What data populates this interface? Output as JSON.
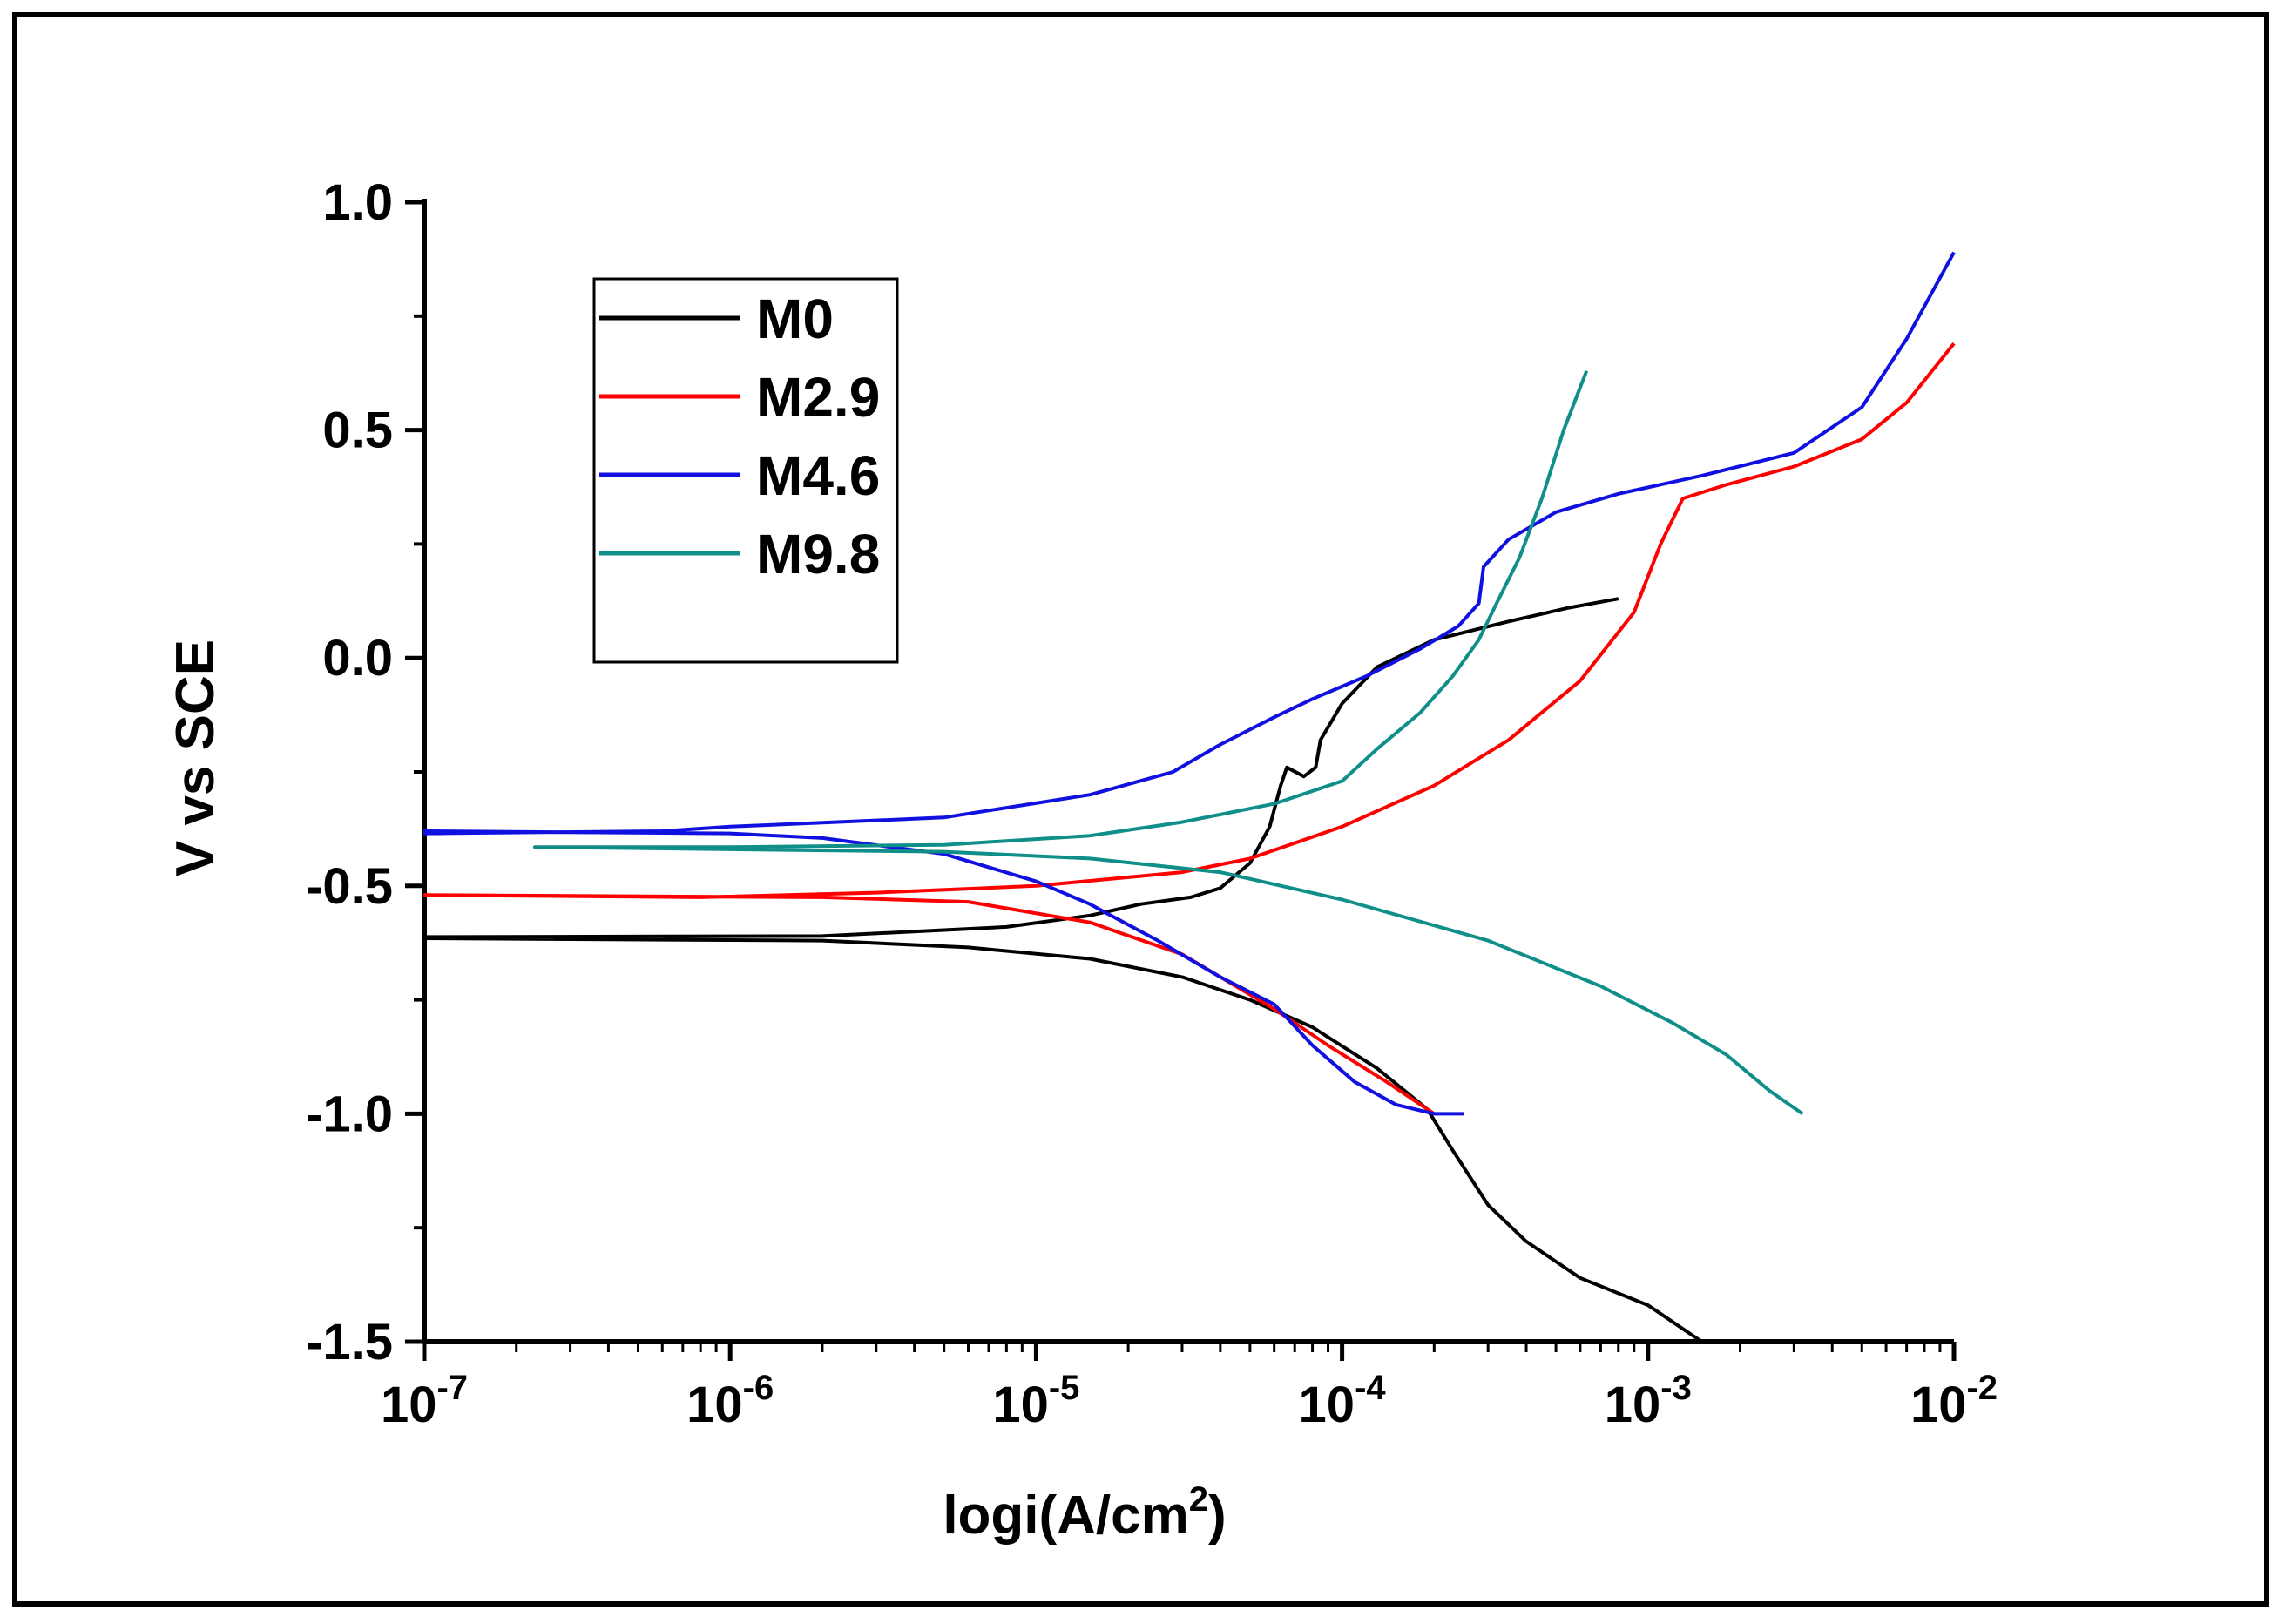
{
  "chart_data": {
    "type": "line",
    "title": "",
    "xlabel": "logi(A/cm",
    "xlabel_sup": "2",
    "xlabel_end": ")",
    "ylabel": "V vs SCE",
    "xscale": "log",
    "xlim": [
      1e-07,
      0.01
    ],
    "ylim": [
      -1.5,
      1.0
    ],
    "x_ticks": [
      {
        "value": 1e-07,
        "base": "10",
        "exp": "-7"
      },
      {
        "value": 1e-06,
        "base": "10",
        "exp": "-6"
      },
      {
        "value": 1e-05,
        "base": "10",
        "exp": "-5"
      },
      {
        "value": 0.0001,
        "base": "10",
        "exp": "-4"
      },
      {
        "value": 0.001,
        "base": "10",
        "exp": "-3"
      },
      {
        "value": 0.01,
        "base": "10",
        "exp": "-2"
      }
    ],
    "y_ticks": [
      {
        "value": 1.0,
        "label": "1.0"
      },
      {
        "value": 0.5,
        "label": "0.5"
      },
      {
        "value": 0.0,
        "label": "0.0"
      },
      {
        "value": -0.5,
        "label": "-0.5"
      },
      {
        "value": -1.0,
        "label": "-1.0"
      },
      {
        "value": -1.5,
        "label": "-1.5"
      }
    ],
    "legend_position": "top-left",
    "series": [
      {
        "name": "M0",
        "color": "#000000",
        "points": [
          [
            0.0015,
            -1.5
          ],
          [
            0.001,
            -1.42
          ],
          [
            0.0006,
            -1.36
          ],
          [
            0.0004,
            -1.28
          ],
          [
            0.0003,
            -1.2
          ],
          [
            0.00023,
            -1.08
          ],
          [
            0.00019,
            -0.99
          ],
          [
            0.00013,
            -0.9
          ],
          [
            8e-05,
            -0.81
          ],
          [
            5e-05,
            -0.75
          ],
          [
            3e-05,
            -0.7
          ],
          [
            1.5e-05,
            -0.66
          ],
          [
            6e-06,
            -0.635
          ],
          [
            2e-06,
            -0.62
          ],
          [
            1e-07,
            -0.615
          ],
          [
            1e-07,
            -0.612
          ],
          [
            2e-06,
            -0.61
          ],
          [
            8e-06,
            -0.59
          ],
          [
            1.5e-05,
            -0.565
          ],
          [
            2.2e-05,
            -0.54
          ],
          [
            3.2e-05,
            -0.525
          ],
          [
            4e-05,
            -0.505
          ],
          [
            5e-05,
            -0.45
          ],
          [
            5.8e-05,
            -0.37
          ],
          [
            6.3e-05,
            -0.28
          ],
          [
            6.6e-05,
            -0.24
          ],
          [
            7.5e-05,
            -0.26
          ],
          [
            8.2e-05,
            -0.24
          ],
          [
            8.5e-05,
            -0.18
          ],
          [
            0.0001,
            -0.1
          ],
          [
            0.00013,
            -0.02
          ],
          [
            0.0002,
            0.04
          ],
          [
            0.00035,
            0.08
          ],
          [
            0.00055,
            0.11
          ],
          [
            0.0008,
            0.13
          ]
        ]
      },
      {
        "name": "M2.9",
        "color": "#ff0000",
        "points": [
          [
            0.0002,
            -1.0
          ],
          [
            0.00014,
            -0.93
          ],
          [
            9e-05,
            -0.85
          ],
          [
            6e-05,
            -0.77
          ],
          [
            3e-05,
            -0.65
          ],
          [
            1.5e-05,
            -0.58
          ],
          [
            6e-06,
            -0.535
          ],
          [
            2e-06,
            -0.525
          ],
          [
            1e-07,
            -0.52
          ],
          [
            1e-07,
            -0.52
          ],
          [
            8e-07,
            -0.525
          ],
          [
            3e-06,
            -0.515
          ],
          [
            1e-05,
            -0.5
          ],
          [
            3e-05,
            -0.47
          ],
          [
            5e-05,
            -0.44
          ],
          [
            0.0001,
            -0.37
          ],
          [
            0.0002,
            -0.28
          ],
          [
            0.00035,
            -0.18
          ],
          [
            0.0006,
            -0.05
          ],
          [
            0.0009,
            0.1
          ],
          [
            0.0011,
            0.25
          ],
          [
            0.0013,
            0.35
          ],
          [
            0.0018,
            0.38
          ],
          [
            0.003,
            0.42
          ],
          [
            0.005,
            0.48
          ],
          [
            0.007,
            0.56
          ],
          [
            0.01,
            0.69
          ]
        ]
      },
      {
        "name": "M4.6",
        "color": "#1010e0",
        "points": [
          [
            0.00025,
            -1.0
          ],
          [
            0.0002,
            -1.0
          ],
          [
            0.00015,
            -0.98
          ],
          [
            0.00011,
            -0.93
          ],
          [
            8e-05,
            -0.85
          ],
          [
            6e-05,
            -0.76
          ],
          [
            4e-05,
            -0.7
          ],
          [
            2.5e-05,
            -0.62
          ],
          [
            1.7e-05,
            -0.56
          ],
          [
            1.5e-05,
            -0.54
          ],
          [
            1e-05,
            -0.49
          ],
          [
            5e-06,
            -0.43
          ],
          [
            2e-06,
            -0.395
          ],
          [
            1e-06,
            -0.385
          ],
          [
            1e-07,
            -0.38
          ],
          [
            1e-07,
            -0.385
          ],
          [
            6e-07,
            -0.38
          ],
          [
            1e-06,
            -0.37
          ],
          [
            5e-06,
            -0.35
          ],
          [
            1.5e-05,
            -0.3
          ],
          [
            2.8e-05,
            -0.25
          ],
          [
            4e-05,
            -0.19
          ],
          [
            6e-05,
            -0.13
          ],
          [
            8e-05,
            -0.09
          ],
          [
            0.00012,
            -0.04
          ],
          [
            0.00018,
            0.02
          ],
          [
            0.00024,
            0.07
          ],
          [
            0.00028,
            0.12
          ],
          [
            0.00029,
            0.2
          ],
          [
            0.00035,
            0.26
          ],
          [
            0.0005,
            0.32
          ],
          [
            0.0008,
            0.36
          ],
          [
            0.0015,
            0.4
          ],
          [
            0.003,
            0.45
          ],
          [
            0.005,
            0.55
          ],
          [
            0.007,
            0.7
          ],
          [
            0.01,
            0.89
          ]
        ]
      },
      {
        "name": "M9.8",
        "color": "#108f8a",
        "points": [
          [
            0.0032,
            -1.0
          ],
          [
            0.0025,
            -0.95
          ],
          [
            0.0018,
            -0.87
          ],
          [
            0.0012,
            -0.8
          ],
          [
            0.0007,
            -0.72
          ],
          [
            0.0003,
            -0.62
          ],
          [
            0.0001,
            -0.53
          ],
          [
            4e-05,
            -0.47
          ],
          [
            1.5e-05,
            -0.44
          ],
          [
            5e-06,
            -0.425
          ],
          [
            1e-06,
            -0.42
          ],
          [
            2.3e-07,
            -0.415
          ],
          [
            2.3e-07,
            -0.415
          ],
          [
            1e-06,
            -0.415
          ],
          [
            5e-06,
            -0.41
          ],
          [
            1.5e-05,
            -0.39
          ],
          [
            3e-05,
            -0.36
          ],
          [
            6e-05,
            -0.32
          ],
          [
            0.0001,
            -0.27
          ],
          [
            0.00013,
            -0.2
          ],
          [
            0.00018,
            -0.12
          ],
          [
            0.00023,
            -0.04
          ],
          [
            0.00028,
            0.04
          ],
          [
            0.00032,
            0.12
          ],
          [
            0.00038,
            0.22
          ],
          [
            0.00045,
            0.35
          ],
          [
            0.00053,
            0.5
          ],
          [
            0.00063,
            0.63
          ]
        ]
      }
    ]
  }
}
